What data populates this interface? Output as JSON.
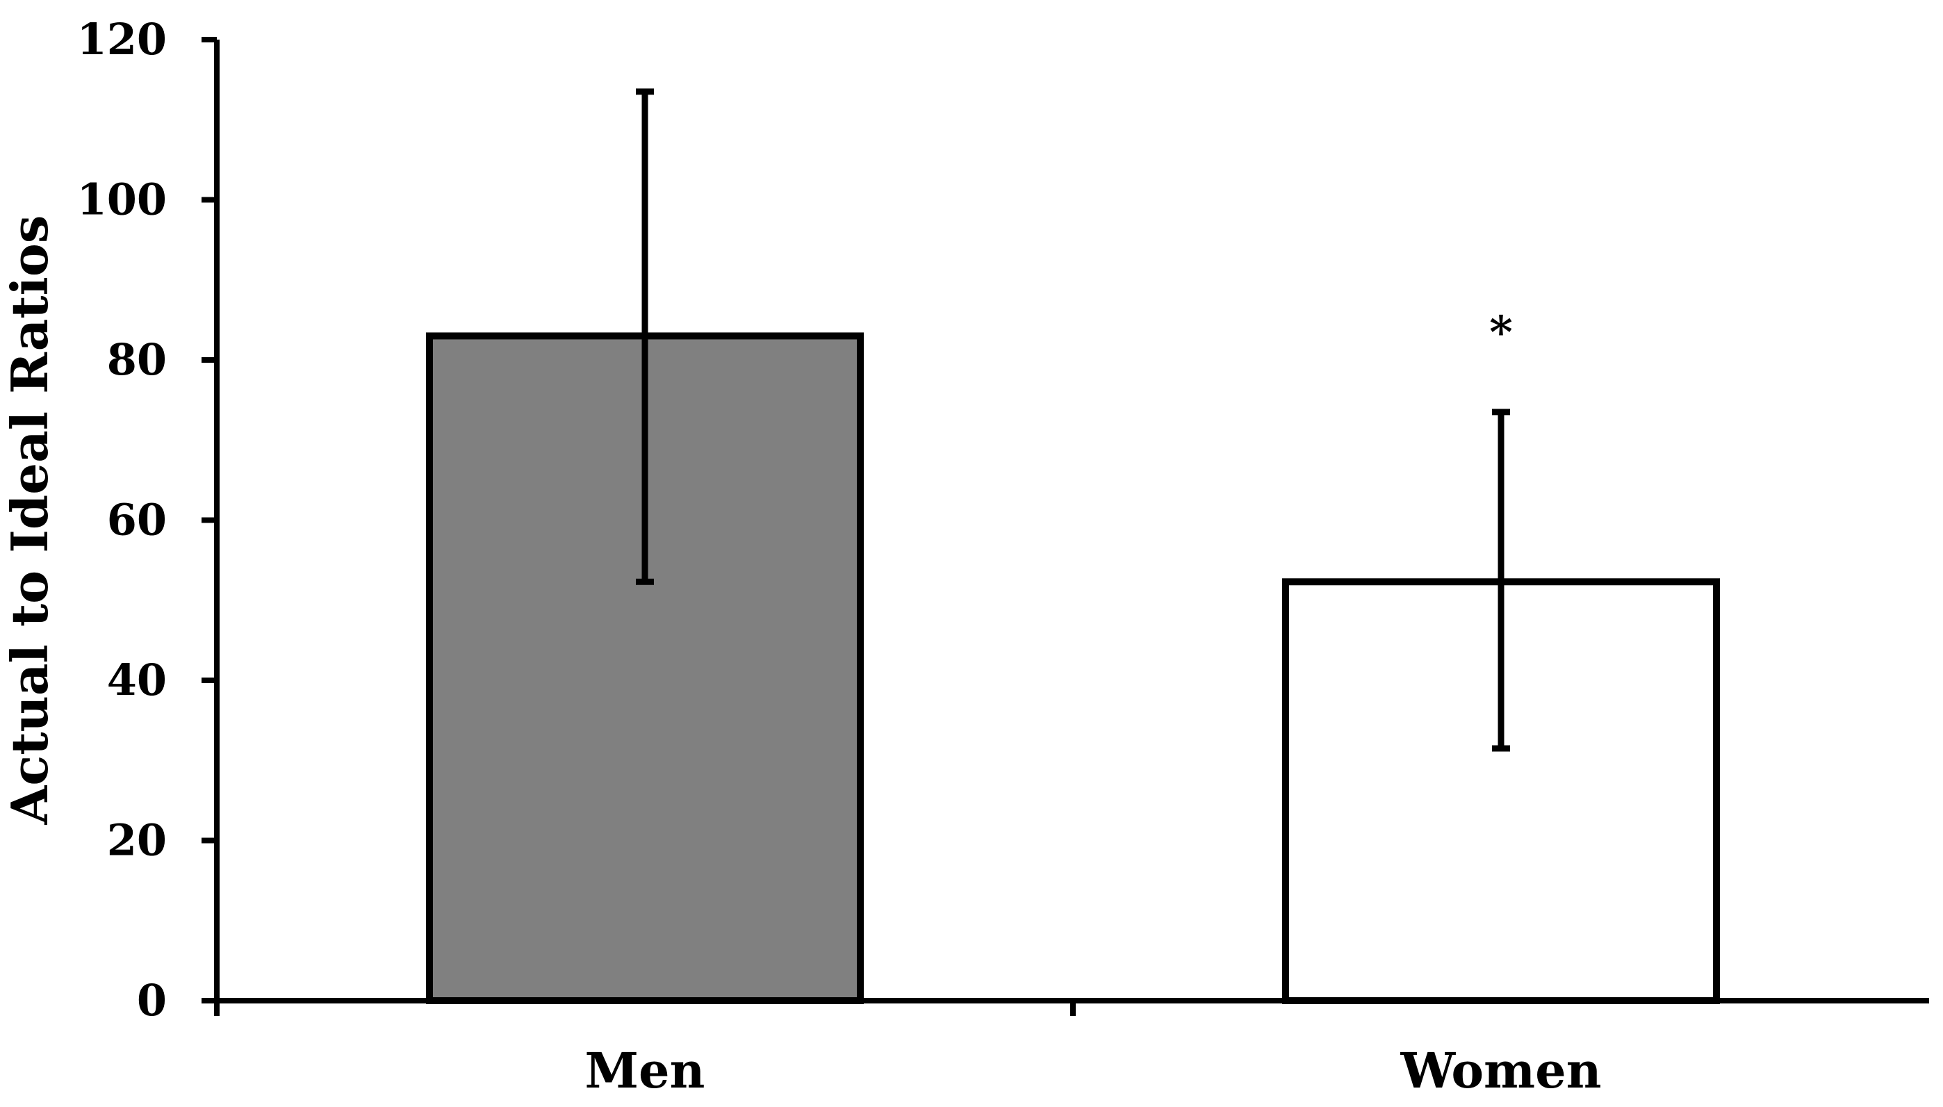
{
  "chart_data": {
    "type": "bar",
    "categories": [
      "Men",
      "Women"
    ],
    "values": [
      83,
      52.3
    ],
    "error_bars": {
      "upper": [
        113.5,
        73.5
      ],
      "lower": [
        52.3,
        31.5
      ]
    },
    "bar_colors": [
      "#808080",
      "#ffffff"
    ],
    "ylabel": "Actual to Ideal Ratios",
    "xlabel": "",
    "title": "",
    "ylim": [
      0,
      120
    ],
    "yticks": [
      0,
      20,
      40,
      60,
      80,
      100,
      120
    ],
    "annotations": [
      {
        "category": "Women",
        "text": "*"
      }
    ],
    "grid": false,
    "legend": "none"
  }
}
